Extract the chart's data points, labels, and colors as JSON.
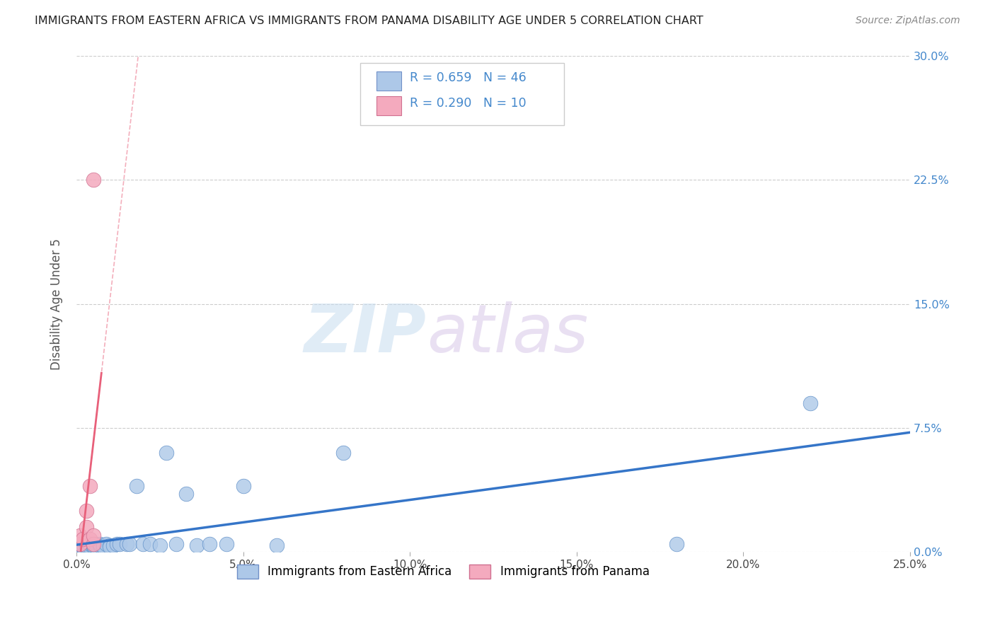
{
  "title": "IMMIGRANTS FROM EASTERN AFRICA VS IMMIGRANTS FROM PANAMA DISABILITY AGE UNDER 5 CORRELATION CHART",
  "source": "Source: ZipAtlas.com",
  "ylabel": "Disability Age Under 5",
  "legend_labels": [
    "Immigrants from Eastern Africa",
    "Immigrants from Panama"
  ],
  "legend_R": [
    0.659,
    0.29
  ],
  "legend_N": [
    46,
    10
  ],
  "xlim": [
    0.0,
    0.25
  ],
  "ylim": [
    0.0,
    0.3
  ],
  "xticks": [
    0.0,
    0.05,
    0.1,
    0.15,
    0.2,
    0.25
  ],
  "xticklabels": [
    "0.0%",
    "5.0%",
    "10.0%",
    "15.0%",
    "20.0%",
    "25.0%"
  ],
  "yticks": [
    0.0,
    0.075,
    0.15,
    0.225,
    0.3
  ],
  "yticklabels_right": [
    "0.0%",
    "7.5%",
    "15.0%",
    "22.5%",
    "30.0%"
  ],
  "color_eastern": "#adc8e8",
  "color_panama": "#f4aabe",
  "trendline_eastern_color": "#3575c8",
  "trendline_panama_color": "#e8607a",
  "watermark_zip": "ZIP",
  "watermark_atlas": "atlas",
  "eastern_africa_x": [
    0.001,
    0.001,
    0.001,
    0.002,
    0.002,
    0.002,
    0.002,
    0.003,
    0.003,
    0.003,
    0.004,
    0.004,
    0.004,
    0.005,
    0.005,
    0.005,
    0.006,
    0.006,
    0.006,
    0.007,
    0.007,
    0.008,
    0.008,
    0.009,
    0.01,
    0.01,
    0.011,
    0.012,
    0.013,
    0.015,
    0.016,
    0.018,
    0.02,
    0.022,
    0.025,
    0.027,
    0.03,
    0.033,
    0.036,
    0.04,
    0.045,
    0.05,
    0.06,
    0.08,
    0.18,
    0.22
  ],
  "eastern_africa_y": [
    0.004,
    0.003,
    0.005,
    0.003,
    0.004,
    0.003,
    0.005,
    0.004,
    0.003,
    0.004,
    0.004,
    0.003,
    0.005,
    0.004,
    0.003,
    0.004,
    0.004,
    0.005,
    0.003,
    0.004,
    0.005,
    0.004,
    0.003,
    0.005,
    0.004,
    0.003,
    0.004,
    0.005,
    0.005,
    0.005,
    0.005,
    0.04,
    0.005,
    0.005,
    0.004,
    0.06,
    0.005,
    0.035,
    0.004,
    0.005,
    0.005,
    0.04,
    0.004,
    0.06,
    0.005,
    0.09
  ],
  "panama_x": [
    0.001,
    0.001,
    0.002,
    0.003,
    0.003,
    0.004,
    0.004,
    0.005,
    0.005,
    0.005
  ],
  "panama_y": [
    0.005,
    0.01,
    0.008,
    0.015,
    0.025,
    0.008,
    0.04,
    0.005,
    0.01,
    0.225
  ]
}
